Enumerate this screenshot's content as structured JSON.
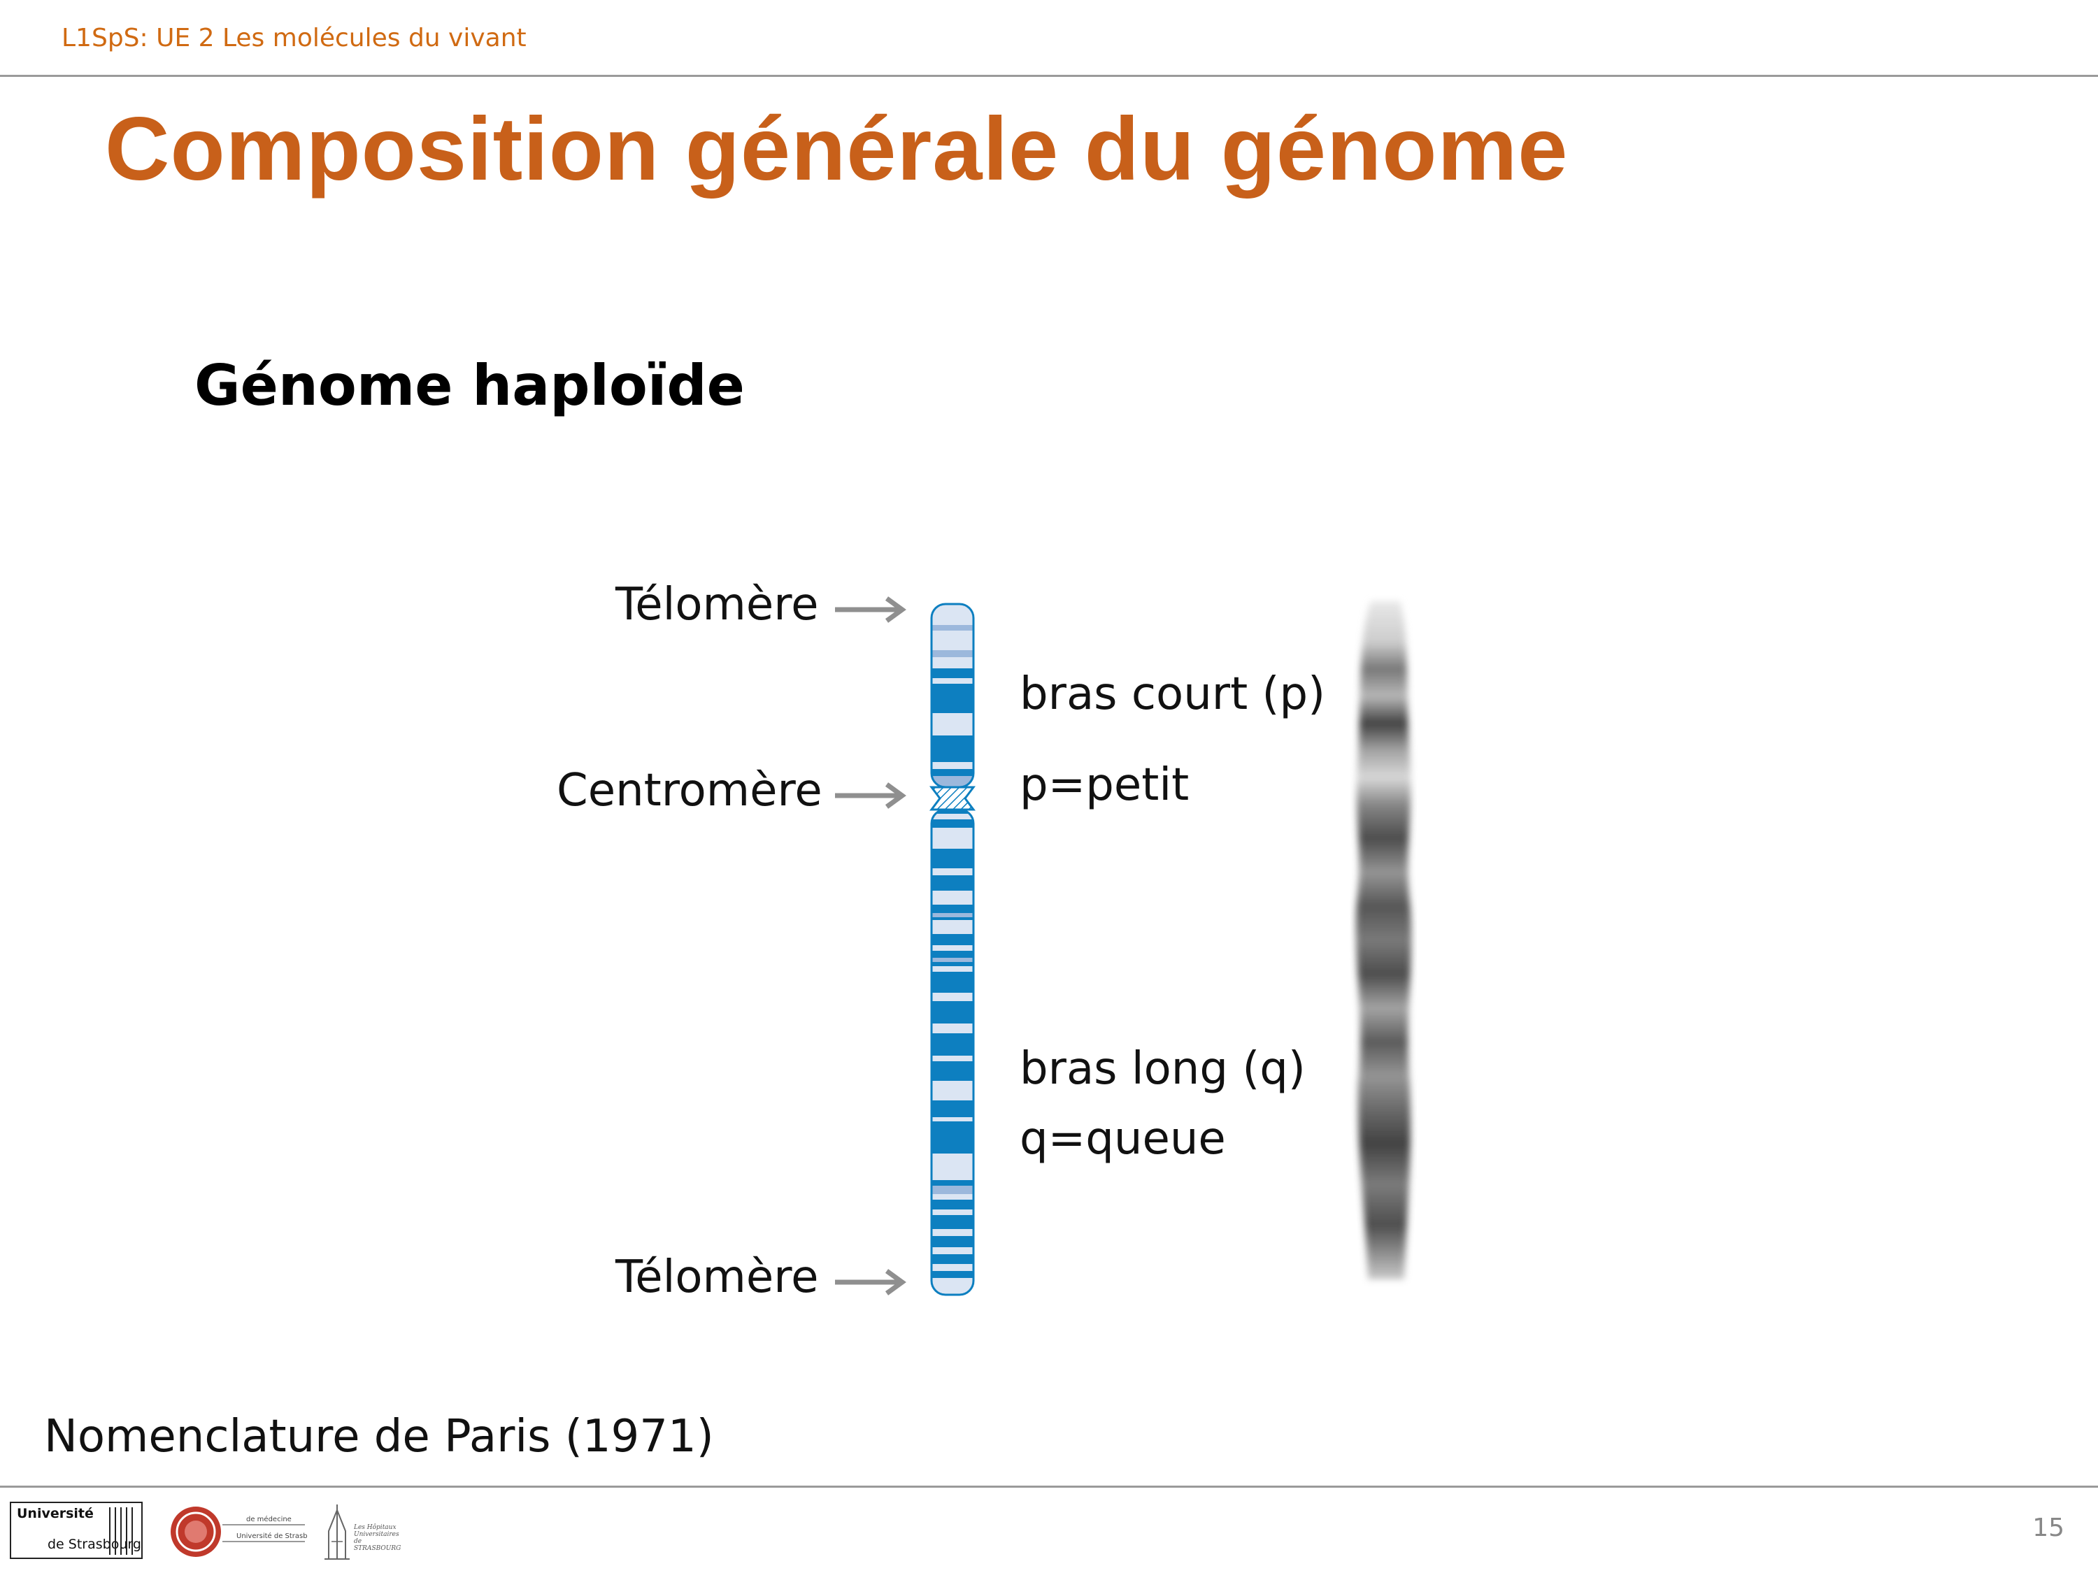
{
  "header": {
    "course": "L1SpS: UE 2 Les molécules du vivant",
    "title": "Composition générale du génome"
  },
  "content": {
    "subtitle": "Génome haploïde",
    "labels": {
      "telomere_top": "Télomère",
      "centromere": "Centromère",
      "telomere_bottom": "Télomère",
      "short_arm": "bras court (p)",
      "short_arm_meaning": "p=petit",
      "long_arm": "bras long (q)",
      "long_arm_meaning": "q=queue"
    },
    "chromosome_colors": {
      "dark_band": "#0d7fc0",
      "light_band": "#dbe5f3",
      "mid_band": "#9cb8dc",
      "arrow": "#8f8f8f"
    },
    "note": "Nomenclature de Paris (1971)"
  },
  "footer": {
    "page_number": "15",
    "logos": {
      "university_line1": "Université",
      "university_line2": "de Strasbourg",
      "seal_text_1": "de médecine",
      "seal_text_2": "Université de Strasbourg",
      "hospital_text": "Les Hôpitaux Universitaires de STRASBOURG"
    }
  }
}
